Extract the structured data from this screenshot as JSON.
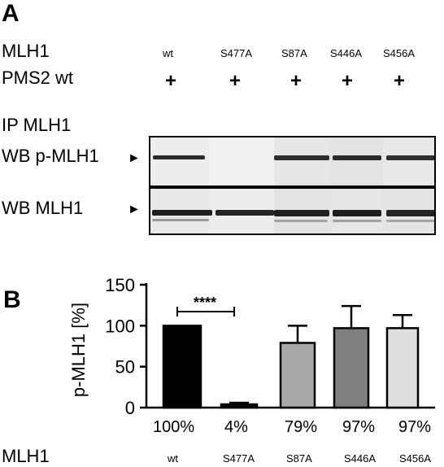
{
  "panel_a": {
    "letter": "A",
    "row_mlh1": "MLH1",
    "row_pms2": "PMS2 wt",
    "lanes": [
      "wt",
      "S477A",
      "S87A",
      "S446A",
      "S456A"
    ],
    "pms2_marks": [
      "+",
      "+",
      "+",
      "+",
      "+"
    ],
    "ip_label": "IP MLH1",
    "wb_pmlh1_label": "WB p-MLH1",
    "wb_mlh1_label": "WB MLH1",
    "band_arrow": "►",
    "band_intensity": {
      "p_mlh1": [
        1.0,
        0.0,
        0.95,
        1.0,
        0.95
      ],
      "mlh1": [
        1.0,
        1.0,
        1.0,
        1.0,
        1.0
      ]
    }
  },
  "panel_b": {
    "letter": "B",
    "x_row_label": "MLH1",
    "significance_label": "****",
    "percent_labels": [
      "100%",
      "4%",
      "79%",
      "97%",
      "97%"
    ]
  },
  "chart_data": {
    "type": "bar",
    "categories": [
      "wt",
      "S477A",
      "S87A",
      "S446A",
      "S456A"
    ],
    "values": [
      100,
      4,
      79,
      97,
      97
    ],
    "errors": [
      0,
      2,
      21,
      27,
      16
    ],
    "bar_colors": [
      "#000000",
      "#000000",
      "#a9a9a9",
      "#7f7f7f",
      "#dedede"
    ],
    "title": "",
    "xlabel": "",
    "ylabel": "p-MLH1 [%]",
    "ylim": [
      0,
      150
    ],
    "yticks": [
      0,
      50,
      100,
      150
    ],
    "grid": false,
    "significance": {
      "from": "wt",
      "to": "S477A",
      "label": "****"
    }
  }
}
